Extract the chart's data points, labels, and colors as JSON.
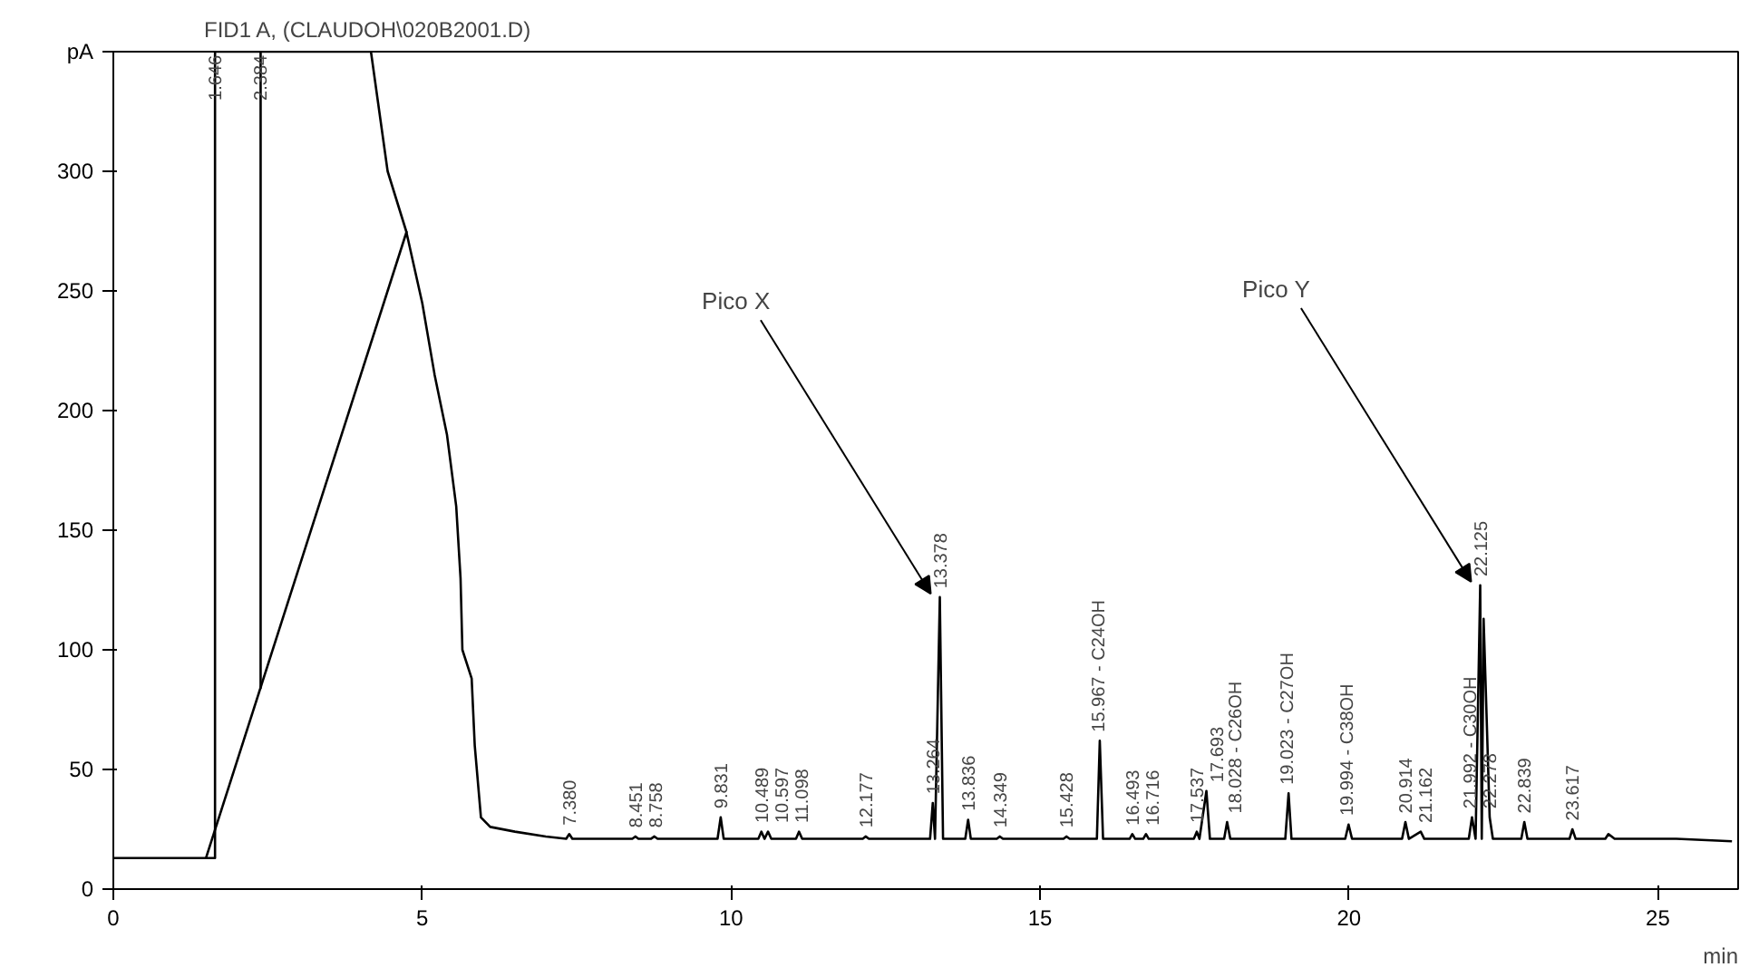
{
  "chart_data": {
    "type": "line",
    "title": "FID1 A, (CLAUDOH\\020B2001.D)",
    "xlabel": "min",
    "xlim": [
      0,
      26.3
    ],
    "ylim": [
      0,
      350
    ],
    "xticks": [
      0,
      5,
      10,
      15,
      20,
      25
    ],
    "yticks": [
      0,
      50,
      100,
      150,
      200,
      250,
      300,
      {
        "value": 350,
        "label": "pA"
      }
    ],
    "grid": false,
    "marker": "none",
    "line_style": "solid",
    "series": [
      {
        "color": "#000000",
        "x": [
          0,
          1.5,
          1.646,
          1.646,
          2.384,
          2.384,
          2.384,
          4.17,
          4.44,
          4.74,
          5.0,
          5.2,
          5.4,
          5.55,
          5.62,
          5.65,
          5.8,
          5.85,
          5.95,
          6.1,
          6.5,
          7.0,
          7.33,
          7.38,
          7.43,
          8.4,
          8.451,
          8.5,
          8.7,
          8.758,
          8.81,
          9.78,
          9.831,
          9.88,
          10.44,
          10.489,
          10.54,
          10.597,
          10.65,
          11.05,
          11.098,
          11.15,
          12.13,
          12.177,
          12.23,
          13.22,
          13.264,
          13.3,
          13.378,
          13.43,
          13.79,
          13.836,
          13.88,
          14.3,
          14.349,
          14.4,
          15.38,
          15.428,
          15.48,
          15.92,
          15.967,
          16.02,
          16.45,
          16.493,
          16.54,
          16.67,
          16.716,
          16.76,
          17.49,
          17.537,
          17.58,
          17.693,
          17.75,
          17.98,
          18.028,
          18.08,
          18.97,
          19.023,
          19.07,
          19.94,
          19.994,
          20.05,
          20.86,
          20.914,
          20.97,
          21.162,
          21.22,
          21.94,
          21.992,
          22.05,
          22.125,
          22.15,
          22.18,
          22.278,
          22.33,
          22.79,
          22.839,
          22.89,
          23.57,
          23.617,
          23.67,
          24.15,
          24.2,
          24.3,
          25.15,
          25.2,
          25.3,
          26.2
        ],
        "values": [
          13,
          13,
          13,
          350,
          350,
          84,
          350,
          350,
          300,
          275,
          245,
          215,
          190,
          160,
          130,
          100,
          88,
          60,
          30,
          26,
          24,
          22,
          21,
          23,
          21,
          21,
          22,
          21,
          21,
          22,
          21,
          21,
          30,
          21,
          21,
          24,
          21,
          24,
          21,
          21,
          24,
          21,
          21,
          22,
          21,
          21,
          36,
          21,
          122,
          21,
          21,
          29,
          21,
          21,
          22,
          21,
          21,
          22,
          21,
          21,
          62,
          21,
          21,
          23,
          21,
          21,
          23,
          21,
          21,
          24,
          21,
          41,
          21,
          21,
          28,
          21,
          21,
          40,
          21,
          21,
          27,
          21,
          21,
          28,
          21,
          24,
          21,
          21,
          30,
          21,
          127,
          21,
          113,
          30,
          21,
          21,
          28,
          21,
          21,
          25,
          21,
          21,
          23,
          21,
          21,
          21,
          21,
          20
        ]
      },
      {
        "color": "#000000",
        "x": [
          1.5,
          4.75
        ],
        "values": [
          13,
          275
        ]
      }
    ],
    "annotations": [
      {
        "text": "1.646",
        "x": 1.646,
        "y": 350
      },
      {
        "text": "2.384",
        "x": 2.384,
        "y": 350
      },
      {
        "text": "7.380",
        "x": 7.38,
        "y": 23
      },
      {
        "text": "8.451",
        "x": 8.451,
        "y": 22
      },
      {
        "text": "8.758",
        "x": 8.758,
        "y": 22
      },
      {
        "text": "9.831",
        "x": 9.831,
        "y": 30
      },
      {
        "text": "10.489",
        "x": 10.489,
        "y": 24
      },
      {
        "text": "10.597",
        "x": 10.597,
        "y": 24
      },
      {
        "text": "11.098",
        "x": 11.098,
        "y": 24
      },
      {
        "text": "12.177",
        "x": 12.177,
        "y": 22
      },
      {
        "text": "13.264",
        "x": 13.264,
        "y": 36
      },
      {
        "text": "13.378",
        "x": 13.378,
        "y": 122
      },
      {
        "text": "13.836",
        "x": 13.836,
        "y": 29
      },
      {
        "text": "14.349",
        "x": 14.349,
        "y": 22
      },
      {
        "text": "15.428",
        "x": 15.428,
        "y": 22
      },
      {
        "text": "15.967 - C24OH",
        "x": 15.967,
        "y": 62
      },
      {
        "text": "16.493",
        "x": 16.493,
        "y": 23
      },
      {
        "text": "16.716",
        "x": 16.716,
        "y": 23
      },
      {
        "text": "17.537",
        "x": 17.537,
        "y": 24
      },
      {
        "text": "17.693",
        "x": 17.693,
        "y": 41
      },
      {
        "text": "18.028 - C26OH",
        "x": 18.028,
        "y": 28
      },
      {
        "text": "19.023 - C27OH",
        "x": 19.023,
        "y": 40
      },
      {
        "text": "19.994 - C38OH",
        "x": 19.994,
        "y": 27
      },
      {
        "text": "20.914",
        "x": 20.914,
        "y": 28
      },
      {
        "text": "21.162",
        "x": 21.162,
        "y": 24
      },
      {
        "text": "21.992 - C30OH",
        "x": 21.992,
        "y": 30
      },
      {
        "text": "22.125",
        "x": 22.125,
        "y": 127
      },
      {
        "text": "22.278",
        "x": 22.278,
        "y": 30
      },
      {
        "text": "22.839",
        "x": 22.839,
        "y": 28
      },
      {
        "text": "23.617",
        "x": 23.617,
        "y": 25
      },
      {
        "text": "Pico X",
        "x": 13.378,
        "y": 122
      },
      {
        "text": "Pico Y",
        "x": 22.125,
        "y": 127
      }
    ]
  }
}
